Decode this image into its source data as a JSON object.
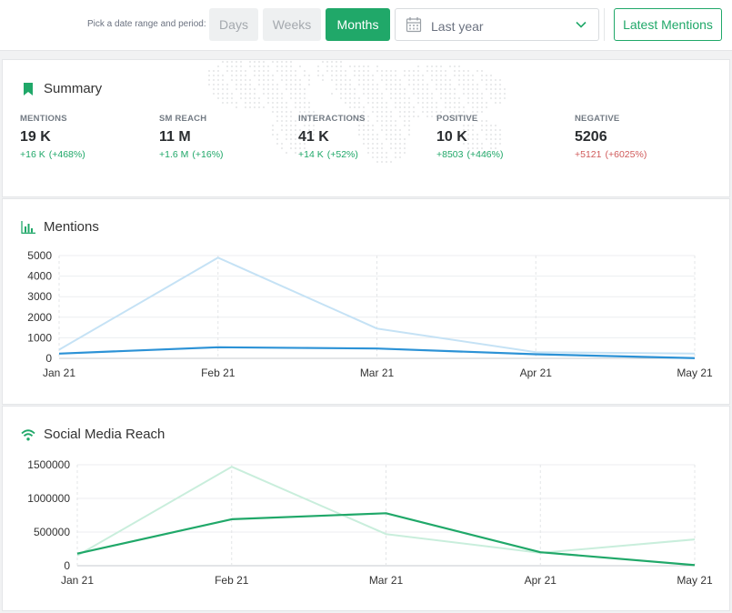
{
  "toolbar": {
    "pick_label": "Pick a date range and period:",
    "periods": [
      "Days",
      "Weeks",
      "Months"
    ],
    "active_period": "Months",
    "date_range": "Last year",
    "latest_button": "Latest Mentions"
  },
  "summary": {
    "title": "Summary",
    "stats": [
      {
        "label": "MENTIONS",
        "value": "19 K",
        "delta": "+16 K",
        "pct": "(+468%)",
        "tone": "pos"
      },
      {
        "label": "SM REACH",
        "value": "11 M",
        "delta": "+1.6 M",
        "pct": "(+16%)",
        "tone": "pos"
      },
      {
        "label": "INTERACTIONS",
        "value": "41 K",
        "delta": "+14 K",
        "pct": "(+52%)",
        "tone": "pos"
      },
      {
        "label": "POSITIVE",
        "value": "10 K",
        "delta": "+8503",
        "pct": "(+446%)",
        "tone": "pos"
      },
      {
        "label": "NEGATIVE",
        "value": "5206",
        "delta": "+5121",
        "pct": "(+6025%)",
        "tone": "neg"
      }
    ]
  },
  "colors": {
    "accent": "#20a869",
    "mentions_current": "#2c92d6",
    "mentions_previous": "#c5e2f5",
    "reach_current": "#20a869",
    "reach_previous": "#c9eedc",
    "negative": "#d05a5a"
  },
  "chart_data": [
    {
      "type": "line",
      "title": "Mentions",
      "categories": [
        "Jan 21",
        "Feb 21",
        "Mar 21",
        "Apr 21",
        "May 21"
      ],
      "ylim": [
        0,
        5000
      ],
      "yticks": [
        0,
        1000,
        2000,
        3000,
        4000,
        5000
      ],
      "grid": true,
      "series": [
        {
          "values": [
            420,
            4900,
            1450,
            300,
            230
          ]
        },
        {
          "values": [
            230,
            540,
            480,
            200,
            10
          ]
        }
      ]
    },
    {
      "type": "line",
      "title": "Social Media Reach",
      "categories": [
        "Jan 21",
        "Feb 21",
        "Mar 21",
        "Apr 21",
        "May 21"
      ],
      "ylim": [
        0,
        1500000
      ],
      "yticks": [
        0,
        500000,
        1000000,
        1500000
      ],
      "grid": true,
      "series": [
        {
          "values": [
            150000,
            1470000,
            470000,
            190000,
            390000
          ]
        },
        {
          "values": [
            180000,
            690000,
            780000,
            200000,
            10000
          ]
        }
      ]
    }
  ]
}
